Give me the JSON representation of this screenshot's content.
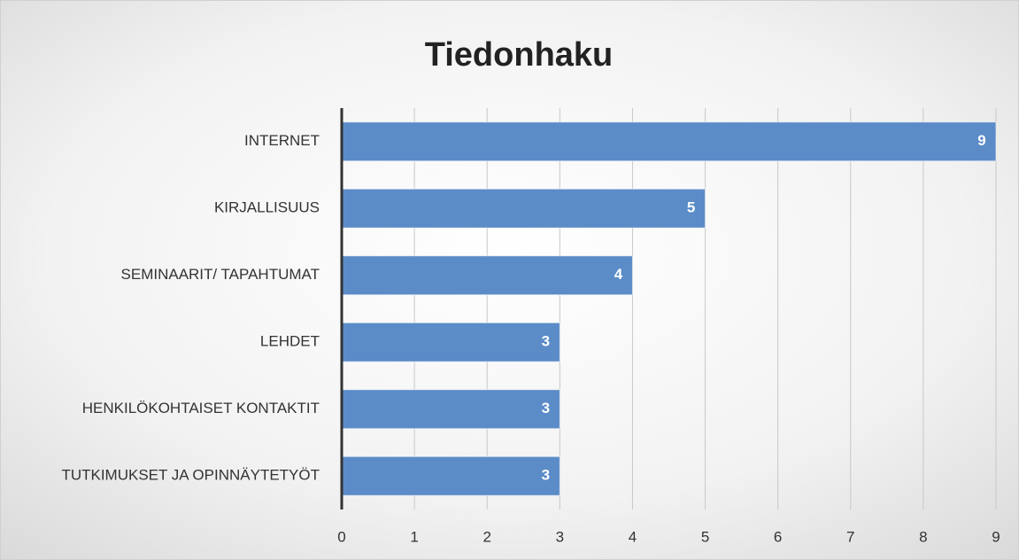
{
  "chart_data": {
    "type": "bar",
    "orientation": "horizontal",
    "title": "Tiedonhaku",
    "categories": [
      "INTERNET",
      "KIRJALLISUUS",
      "SEMINAARIT/ TAPAHTUMAT",
      "LEHDET",
      "HENKILÖKOHTAISET KONTAKTIT",
      "TUTKIMUKSET JA OPINNÄYTETYÖT"
    ],
    "values": [
      9,
      5,
      4,
      3,
      3,
      3
    ],
    "color": "#5b8cc8",
    "xlim": [
      0,
      9
    ],
    "xticks": [
      0,
      1,
      2,
      3,
      4,
      5,
      6,
      7,
      8,
      9
    ],
    "grid": true
  }
}
